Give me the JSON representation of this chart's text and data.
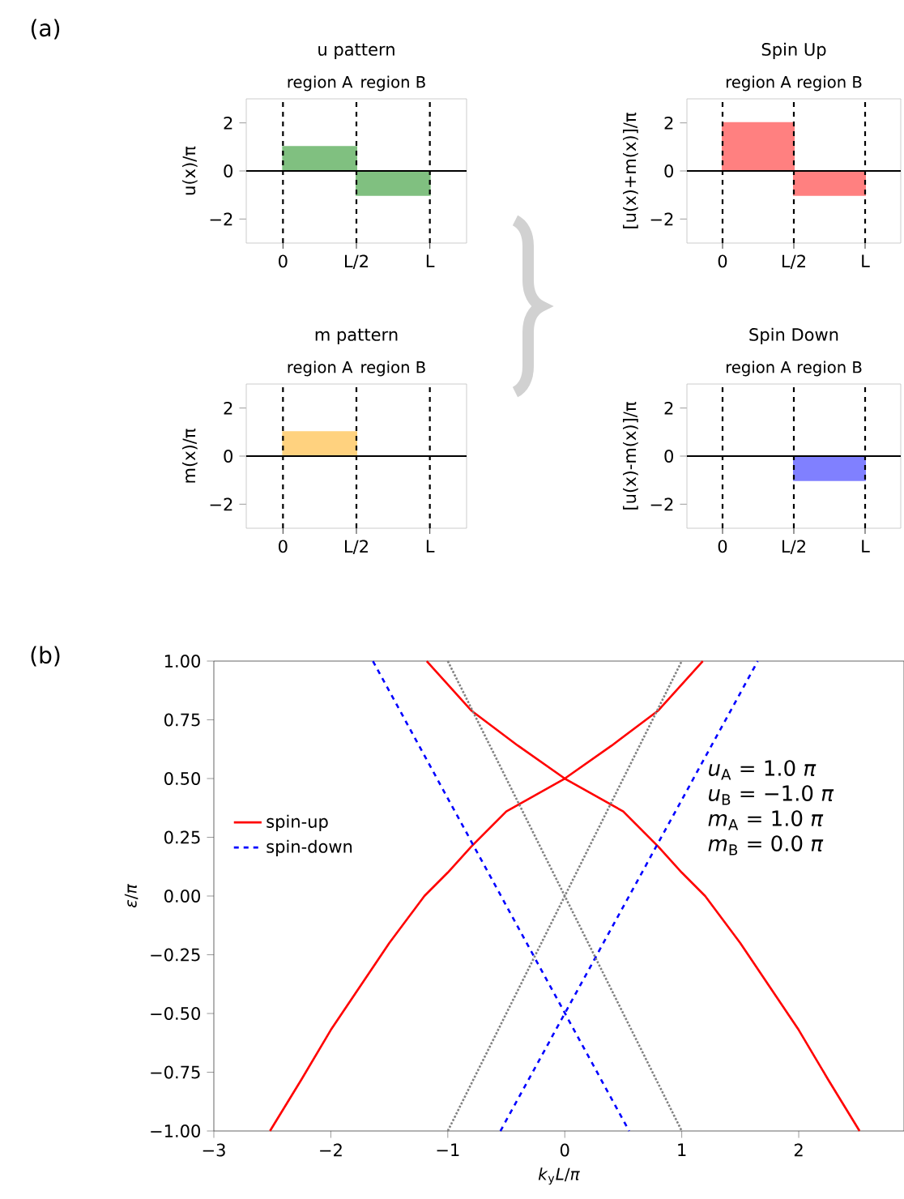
{
  "chart_data": [
    {
      "type": "bar",
      "title": "u pattern",
      "ylabel": "u(x)/π",
      "annotations": [
        "(a)",
        "0",
        "L/2",
        "L"
      ],
      "categories": [
        "region A",
        "region B"
      ],
      "values": [
        1,
        -1
      ],
      "color": "#80c080",
      "ylim": [
        -3,
        3
      ],
      "yticks": [
        {
          "value": -2,
          "label": "−2"
        },
        0,
        2
      ],
      "ref_lines": [
        {
          "axis": "y",
          "value": 0,
          "color": "#000000",
          "line_style": "solid"
        }
      ]
    },
    {
      "type": "bar",
      "title": "Spin Up",
      "ylabel": "[u(x)+m(x)]/π",
      "annotations": [
        "0",
        "L/2",
        "L"
      ],
      "categories": [
        "region A",
        "region B"
      ],
      "values": [
        2,
        -1
      ],
      "color": "#ff8080",
      "ylim": [
        -3,
        3
      ],
      "yticks": [
        {
          "value": -2,
          "label": "−2"
        },
        0,
        2
      ],
      "ref_lines": [
        {
          "axis": "y",
          "value": 0,
          "color": "#000000",
          "line_style": "solid"
        }
      ]
    },
    {
      "type": "bar",
      "title": "m pattern",
      "ylabel": "m(x)/π",
      "annotations": [
        "0",
        "L/2",
        "L"
      ],
      "categories": [
        "region A",
        "region B"
      ],
      "values": [
        1,
        0
      ],
      "color": "#ffd27f",
      "ylim": [
        -3,
        3
      ],
      "yticks": [
        {
          "value": -2,
          "label": "−2"
        },
        0,
        2
      ],
      "ref_lines": [
        {
          "axis": "y",
          "value": 0,
          "color": "#000000",
          "line_style": "solid"
        }
      ]
    },
    {
      "type": "bar",
      "title": "Spin Down",
      "ylabel": "[u(x)-m(x)]/π",
      "annotations": [
        "0",
        "L/2",
        "L"
      ],
      "categories": [
        "region A",
        "region B"
      ],
      "values": [
        0,
        -1
      ],
      "color": "#8080ff",
      "ylim": [
        -3,
        3
      ],
      "yticks": [
        {
          "value": -2,
          "label": "−2"
        },
        0,
        2
      ],
      "ref_lines": [
        {
          "axis": "y",
          "value": 0,
          "color": "#000000",
          "line_style": "solid"
        }
      ]
    },
    {
      "type": "line",
      "xlabel": "*k*$_{y}$*L*/*π*",
      "ylabel": "*ε*/*π*",
      "annotations": [
        "(b)",
        "*u*$_{A}$ = 1.0 *π*",
        "*u*$_{B}$ = −1.0 *π*",
        "*m*$_{A}$ = 1.0 *π*",
        "*m*$_{B}$ = 0.0 *π*"
      ],
      "legend": "center left",
      "xlim": [
        -3,
        2.9
      ],
      "xticks": [
        {
          "value": -3,
          "label": "−3"
        },
        {
          "value": -2,
          "label": "−2"
        },
        {
          "value": -1,
          "label": "−1"
        },
        0,
        1,
        2
      ],
      "ylim": [
        -1,
        1
      ],
      "yticks": [
        {
          "value": -1,
          "label": "−1.00"
        },
        {
          "value": -0.75,
          "label": "−0.75"
        },
        {
          "value": -0.5,
          "label": "−0.50"
        },
        {
          "value": -0.25,
          "label": "−0.25"
        },
        {
          "value": 0,
          "label": "0.00"
        },
        {
          "value": 0.25,
          "label": "0.25"
        },
        {
          "value": 0.5,
          "label": "0.50"
        },
        {
          "value": 0.75,
          "label": "0.75"
        },
        {
          "value": 1,
          "label": "1.00"
        }
      ],
      "series": [
        {
          "name": "spin-up",
          "color": "#ff0000",
          "line_style": "solid",
          "x": [
            -2.52,
            -2.25,
            -2,
            -1.5,
            -1.2,
            -1,
            -0.8,
            -0.5,
            0,
            0.4,
            0.8,
            1.18
          ],
          "values": [
            -1,
            -0.78,
            -0.57,
            -0.2,
            0,
            0.1,
            0.21,
            0.36,
            0.5,
            0.64,
            0.79,
            1
          ]
        },
        {
          "color": "#ff0000",
          "line_style": "solid",
          "x": [
            -1.18,
            -0.8,
            -0.4,
            0,
            0.5,
            0.8,
            1,
            1.2,
            1.5,
            2,
            2.25,
            2.52
          ],
          "values": [
            1,
            0.79,
            0.64,
            0.5,
            0.36,
            0.21,
            0.1,
            0,
            -0.2,
            -0.57,
            -0.78,
            -1
          ]
        },
        {
          "name": "spin-down",
          "color": "#0000ff",
          "line_style": "dashed",
          "x": [
            -1.64,
            0.55
          ],
          "values": [
            1,
            -1
          ]
        },
        {
          "color": "#0000ff",
          "line_style": "dashed",
          "x": [
            -0.55,
            1.65
          ],
          "values": [
            -1,
            1
          ]
        },
        {
          "color": "#808080",
          "line_style": "dotted",
          "x": [
            -1,
            1
          ],
          "values": [
            1,
            -1
          ]
        },
        {
          "color": "#808080",
          "line_style": "dotted",
          "x": [
            -1,
            1
          ],
          "values": [
            -1,
            1
          ]
        }
      ]
    }
  ]
}
